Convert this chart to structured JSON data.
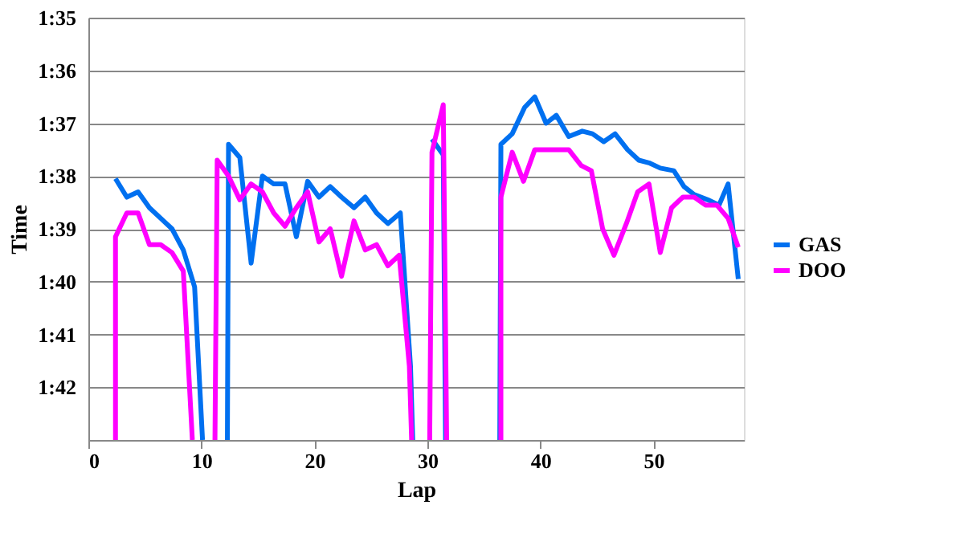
{
  "chart_data": {
    "type": "line",
    "xlabel": "Lap",
    "ylabel": "Time",
    "xlim": [
      0,
      58
    ],
    "xticks": [
      0,
      10,
      20,
      30,
      40,
      50
    ],
    "ylim": [
      103,
      95
    ],
    "yticks": [
      {
        "value": 95,
        "label": "1:35"
      },
      {
        "value": 96,
        "label": "1:36"
      },
      {
        "value": 97,
        "label": "1:37"
      },
      {
        "value": 98,
        "label": "1:38"
      },
      {
        "value": 99,
        "label": "1:39"
      },
      {
        "value": 100,
        "label": "1:40"
      },
      {
        "value": 101,
        "label": "1:41"
      },
      {
        "value": 102,
        "label": "1:42"
      },
      {
        "value": 103,
        "label": null
      }
    ],
    "grid": "y",
    "legend": "right",
    "marker": "none",
    "line_style": "solid",
    "series": [
      {
        "name": "GAS",
        "color": "#0070f0",
        "x": [
          2.4,
          3.4,
          4.4,
          5.4,
          6.4,
          7.4,
          8.4,
          9.4,
          10.1,
          11,
          12.3,
          12.4,
          13.4,
          14.4,
          15.4,
          16.4,
          17.4,
          18.4,
          19.4,
          20.4,
          21.4,
          22.4,
          23.5,
          24.5,
          25.5,
          26.5,
          27.6,
          28.5,
          28.7,
          29.5,
          30.4,
          31.4,
          31.6,
          34,
          36.4,
          36.5,
          37.5,
          38.6,
          39.5,
          40.5,
          41.4,
          42.5,
          43.7,
          44.6,
          45.6,
          46.6,
          47.7,
          48.7,
          49.6,
          50.6,
          51.8,
          52.7,
          53.6,
          54.8,
          55.8,
          56.6,
          57.5
        ],
        "values": [
          98.05,
          98.4,
          98.3,
          98.6,
          98.8,
          99.0,
          99.4,
          100.1,
          103,
          null,
          103,
          97.4,
          97.65,
          99.65,
          98.0,
          98.15,
          98.15,
          99.15,
          98.1,
          98.4,
          98.2,
          98.4,
          98.6,
          98.4,
          98.7,
          98.9,
          98.7,
          101.6,
          103,
          null,
          97.3,
          97.6,
          103,
          null,
          103,
          97.4,
          97.2,
          96.7,
          96.5,
          97.0,
          96.85,
          97.25,
          97.15,
          97.2,
          97.35,
          97.2,
          97.5,
          97.7,
          97.75,
          97.85,
          97.9,
          98.2,
          98.35,
          98.45,
          98.55,
          98.15,
          99.95
        ]
      },
      {
        "name": "DOO",
        "color": "#ff00ff",
        "x": [
          2.4,
          2.4,
          3.4,
          4.4,
          5.4,
          6.4,
          7.4,
          8.4,
          9.2,
          10,
          11.2,
          11.4,
          12.4,
          13.4,
          14.4,
          15.4,
          16.4,
          17.4,
          18.4,
          19.4,
          20.4,
          21.4,
          22.4,
          23.5,
          24.5,
          25.5,
          26.5,
          27.5,
          28.4,
          28.6,
          29.5,
          30.2,
          30.4,
          31.4,
          31.7,
          34,
          36.5,
          36.5,
          37.5,
          38.5,
          39.5,
          40.5,
          41.4,
          42.5,
          43.6,
          44.5,
          45.5,
          46.5,
          47.6,
          48.6,
          49.6,
          50.6,
          51.6,
          52.6,
          53.6,
          54.6,
          55.6,
          56.6,
          57.5
        ],
        "values": [
          103,
          99.15,
          98.7,
          98.7,
          99.3,
          99.3,
          99.45,
          99.8,
          103,
          null,
          103,
          97.7,
          98.0,
          98.45,
          98.15,
          98.3,
          98.7,
          98.95,
          98.6,
          98.3,
          99.25,
          99.0,
          99.9,
          98.85,
          99.4,
          99.3,
          99.7,
          99.5,
          101.6,
          103,
          null,
          103,
          97.55,
          96.65,
          103,
          null,
          103,
          98.4,
          97.55,
          98.1,
          97.5,
          97.5,
          97.5,
          97.5,
          97.8,
          97.9,
          99.0,
          99.5,
          98.9,
          98.3,
          98.15,
          99.45,
          98.6,
          98.4,
          98.4,
          98.55,
          98.55,
          98.8,
          99.35
        ]
      }
    ]
  }
}
